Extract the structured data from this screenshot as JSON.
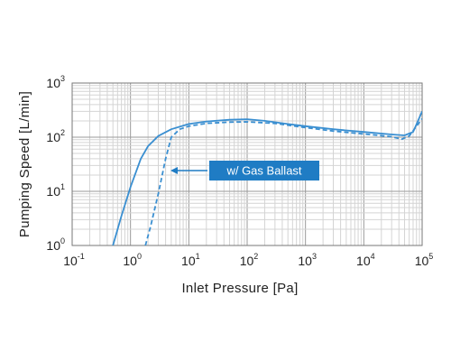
{
  "chart_data": {
    "type": "line",
    "xlabel": "Inlet Pressure [Pa]",
    "ylabel": "Pumping Speed [L/min]",
    "xscale": "log",
    "yscale": "log",
    "xlim": [
      0.1,
      100000
    ],
    "ylim": [
      1,
      1000
    ],
    "grid": true,
    "x_ticks": [
      {
        "base": "10",
        "exp": "-1"
      },
      {
        "base": "10",
        "exp": "0"
      },
      {
        "base": "10",
        "exp": "1"
      },
      {
        "base": "10",
        "exp": "2"
      },
      {
        "base": "10",
        "exp": "3"
      },
      {
        "base": "10",
        "exp": "4"
      },
      {
        "base": "10",
        "exp": "5"
      }
    ],
    "y_ticks": [
      {
        "base": "10",
        "exp": "0"
      },
      {
        "base": "10",
        "exp": "1"
      },
      {
        "base": "10",
        "exp": "2"
      },
      {
        "base": "10",
        "exp": "3"
      }
    ],
    "series": [
      {
        "style": "solid",
        "color": "#3a8fd1",
        "points": [
          [
            0.5,
            1
          ],
          [
            0.7,
            3.5
          ],
          [
            1,
            12
          ],
          [
            1.5,
            40
          ],
          [
            2,
            68
          ],
          [
            3,
            105
          ],
          [
            5,
            140
          ],
          [
            10,
            175
          ],
          [
            20,
            195
          ],
          [
            50,
            210
          ],
          [
            100,
            215
          ],
          [
            200,
            200
          ],
          [
            500,
            175
          ],
          [
            1000,
            160
          ],
          [
            3000,
            140
          ],
          [
            10000,
            125
          ],
          [
            30000,
            112
          ],
          [
            50000,
            108
          ],
          [
            70000,
            125
          ],
          [
            100000,
            300
          ]
        ]
      },
      {
        "style": "dashed",
        "color": "#3a8fd1",
        "points": [
          [
            1.8,
            1
          ],
          [
            2.2,
            2.2
          ],
          [
            3,
            9
          ],
          [
            4,
            40
          ],
          [
            5,
            100
          ],
          [
            7,
            140
          ],
          [
            10,
            160
          ],
          [
            20,
            180
          ],
          [
            50,
            190
          ],
          [
            100,
            192
          ],
          [
            300,
            180
          ],
          [
            1000,
            150
          ],
          [
            3000,
            130
          ],
          [
            10000,
            115
          ],
          [
            30000,
            102
          ],
          [
            45000,
            92
          ],
          [
            60000,
            105
          ],
          [
            100000,
            220
          ]
        ]
      }
    ],
    "annotations": [
      {
        "text": "w/ Gas Ballast",
        "box_color": "#1f7cc4",
        "arrow_to": [
          4.2,
          55
        ]
      }
    ]
  }
}
